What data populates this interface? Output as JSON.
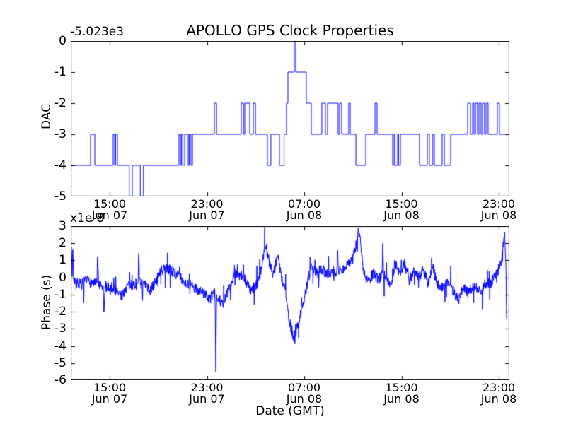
{
  "figure": {
    "title": "APOLLO GPS Clock Properties",
    "xlabel": "Date (GMT)",
    "background_color": "#ffffff",
    "line_color": "#0000ff",
    "axis_color": "#000000"
  },
  "chart_data": [
    {
      "type": "line",
      "style": "step-post",
      "series_name": "DAC",
      "ylabel": "DAC",
      "y_offset_label": "-5.023e3",
      "ylim": [
        -5,
        0
      ],
      "yticks": [
        0,
        -1,
        -2,
        -3,
        -4,
        -5
      ],
      "xlim_hours": [
        11.8,
        47.87
      ],
      "x_unit": "hours since Jun 07 00:00 GMT",
      "xticks": [
        {
          "hour": 15,
          "label": "15:00",
          "sub": "Jun 07"
        },
        {
          "hour": 23,
          "label": "23:00",
          "sub": "Jun 07"
        },
        {
          "hour": 31,
          "label": "07:00",
          "sub": "Jun 08"
        },
        {
          "hour": 39,
          "label": "15:00",
          "sub": "Jun 08"
        },
        {
          "hour": 47,
          "label": "23:00",
          "sub": "Jun 08"
        }
      ],
      "steps": [
        [
          11.8,
          -4
        ],
        [
          13.43,
          -3
        ],
        [
          13.78,
          -4
        ],
        [
          15.29,
          -3
        ],
        [
          15.41,
          -4
        ],
        [
          15.49,
          -3
        ],
        [
          15.64,
          -4
        ],
        [
          16.61,
          -5
        ],
        [
          16.86,
          -4
        ],
        [
          17.52,
          -5
        ],
        [
          17.78,
          -4
        ],
        [
          20.7,
          -3
        ],
        [
          20.82,
          -4
        ],
        [
          20.91,
          -3
        ],
        [
          21.02,
          -4
        ],
        [
          21.17,
          -3
        ],
        [
          21.46,
          -4
        ],
        [
          21.55,
          -3
        ],
        [
          21.69,
          -4
        ],
        [
          21.81,
          -3
        ],
        [
          23.61,
          -2
        ],
        [
          23.79,
          -3
        ],
        [
          25.82,
          -2
        ],
        [
          26.0,
          -3
        ],
        [
          26.11,
          -2
        ],
        [
          26.52,
          -3
        ],
        [
          26.81,
          -2
        ],
        [
          26.99,
          -3
        ],
        [
          27.97,
          -4
        ],
        [
          28.26,
          -3
        ],
        [
          28.96,
          -4
        ],
        [
          29.34,
          -3
        ],
        [
          29.54,
          -2
        ],
        [
          29.66,
          -1
        ],
        [
          30.18,
          0
        ],
        [
          30.3,
          -1
        ],
        [
          31.17,
          -2
        ],
        [
          31.58,
          -3
        ],
        [
          32.45,
          -2
        ],
        [
          32.74,
          -3
        ],
        [
          32.92,
          -2
        ],
        [
          33.79,
          -3
        ],
        [
          33.91,
          -2
        ],
        [
          34.08,
          -3
        ],
        [
          34.66,
          -2
        ],
        [
          34.78,
          -3
        ],
        [
          35.25,
          -4
        ],
        [
          36.06,
          -3
        ],
        [
          36.82,
          -2
        ],
        [
          36.99,
          -3
        ],
        [
          38.27,
          -4
        ],
        [
          38.39,
          -3
        ],
        [
          38.47,
          -4
        ],
        [
          38.68,
          -3
        ],
        [
          38.76,
          -4
        ],
        [
          38.91,
          -3
        ],
        [
          40.48,
          -4
        ],
        [
          41.12,
          -3
        ],
        [
          41.29,
          -4
        ],
        [
          41.58,
          -3
        ],
        [
          41.7,
          -4
        ],
        [
          42.34,
          -3
        ],
        [
          42.52,
          -4
        ],
        [
          43.04,
          -3
        ],
        [
          44.44,
          -2
        ],
        [
          44.67,
          -3
        ],
        [
          44.85,
          -2
        ],
        [
          44.96,
          -3
        ],
        [
          45.08,
          -2
        ],
        [
          45.25,
          -3
        ],
        [
          45.37,
          -2
        ],
        [
          45.54,
          -3
        ],
        [
          45.66,
          -2
        ],
        [
          45.83,
          -3
        ],
        [
          45.95,
          -2
        ],
        [
          46.12,
          -3
        ],
        [
          46.88,
          -2
        ],
        [
          47.05,
          -3
        ],
        [
          47.52,
          -3
        ]
      ]
    },
    {
      "type": "line",
      "style": "noisy",
      "series_name": "Phase",
      "ylabel": "Phase (s)",
      "y_multiplier_label": "x1e-8",
      "ylim": [
        -6,
        3
      ],
      "yticks": [
        3,
        2,
        1,
        0,
        -1,
        -2,
        -3,
        -4,
        -5,
        -6
      ],
      "xlim_hours": [
        11.8,
        47.87
      ],
      "x_unit": "hours since Jun 07 00:00 GMT",
      "xticks": [
        {
          "hour": 15,
          "label": "15:00",
          "sub": "Jun 07"
        },
        {
          "hour": 23,
          "label": "23:00",
          "sub": "Jun 07"
        },
        {
          "hour": 31,
          "label": "07:00",
          "sub": "Jun 08"
        },
        {
          "hour": 39,
          "label": "15:00",
          "sub": "Jun 08"
        },
        {
          "hour": 47,
          "label": "23:00",
          "sub": "Jun 08"
        }
      ],
      "trend_points": [
        [
          11.8,
          1.0
        ],
        [
          11.85,
          1.8
        ],
        [
          11.92,
          0.2
        ],
        [
          11.97,
          1.9
        ],
        [
          12.03,
          0.0
        ],
        [
          12.3,
          -0.3
        ],
        [
          12.67,
          -0.4
        ],
        [
          13.2,
          -0.2
        ],
        [
          13.55,
          -0.3
        ],
        [
          13.95,
          -0.4
        ],
        [
          14.01,
          1.5
        ],
        [
          14.1,
          -0.5
        ],
        [
          14.47,
          -0.6
        ],
        [
          14.53,
          -2.0
        ],
        [
          14.65,
          -0.5
        ],
        [
          15.29,
          -0.6
        ],
        [
          15.99,
          -1.1
        ],
        [
          16.45,
          -0.5
        ],
        [
          17.0,
          -0.4
        ],
        [
          17.33,
          -0.3
        ],
        [
          17.39,
          1.5
        ],
        [
          17.46,
          -0.3
        ],
        [
          18.0,
          -0.5
        ],
        [
          18.32,
          -0.8
        ],
        [
          18.8,
          -0.2
        ],
        [
          19.25,
          0.4
        ],
        [
          19.95,
          0.5
        ],
        [
          20.64,
          0.1
        ],
        [
          21.23,
          -0.3
        ],
        [
          21.98,
          -0.6
        ],
        [
          22.74,
          -0.9
        ],
        [
          23.2,
          -1.3
        ],
        [
          23.55,
          -0.9
        ],
        [
          23.67,
          -1.0
        ],
        [
          23.73,
          -5.5
        ],
        [
          23.8,
          -1.0
        ],
        [
          24.31,
          -1.6
        ],
        [
          24.72,
          -0.8
        ],
        [
          25.3,
          0.3
        ],
        [
          26.05,
          0.0
        ],
        [
          26.64,
          -0.8
        ],
        [
          27.1,
          -0.4
        ],
        [
          27.51,
          0.6
        ],
        [
          27.8,
          2.1
        ],
        [
          28.09,
          1.0
        ],
        [
          28.44,
          0.2
        ],
        [
          28.85,
          1.3
        ],
        [
          29.14,
          -0.1
        ],
        [
          29.43,
          -0.6
        ],
        [
          29.72,
          -2.4
        ],
        [
          30.01,
          -3.2
        ],
        [
          30.24,
          -3.6
        ],
        [
          30.53,
          -2.6
        ],
        [
          30.88,
          -1.6
        ],
        [
          31.23,
          -0.4
        ],
        [
          31.58,
          0.6
        ],
        [
          31.99,
          0.3
        ],
        [
          32.45,
          0.5
        ],
        [
          32.86,
          0.2
        ],
        [
          33.33,
          0.4
        ],
        [
          33.67,
          0.3
        ],
        [
          33.73,
          1.7
        ],
        [
          33.8,
          0.4
        ],
        [
          34.49,
          0.6
        ],
        [
          34.9,
          1.1
        ],
        [
          35.19,
          1.5
        ],
        [
          35.42,
          2.7
        ],
        [
          35.6,
          2.2
        ],
        [
          35.89,
          0.3
        ],
        [
          36.24,
          -0.3
        ],
        [
          36.65,
          0.2
        ],
        [
          37.11,
          -0.1
        ],
        [
          37.4,
          0.2
        ],
        [
          37.46,
          1.9
        ],
        [
          37.53,
          0.2
        ],
        [
          38.16,
          -0.4
        ],
        [
          38.45,
          0.8
        ],
        [
          38.85,
          0.3
        ],
        [
          39.26,
          0.8
        ],
        [
          39.61,
          -0.2
        ],
        [
          40.02,
          0.4
        ],
        [
          40.43,
          0.0
        ],
        [
          40.78,
          0.5
        ],
        [
          41.18,
          -0.3
        ],
        [
          41.58,
          0.6
        ],
        [
          41.93,
          -0.4
        ],
        [
          42.4,
          -0.6
        ],
        [
          42.86,
          -0.3
        ],
        [
          43.27,
          -0.8
        ],
        [
          43.68,
          -1.3
        ],
        [
          44.09,
          -0.6
        ],
        [
          44.5,
          -0.9
        ],
        [
          44.96,
          -0.5
        ],
        [
          45.43,
          -0.8
        ],
        [
          45.89,
          -0.4
        ],
        [
          46.36,
          -0.3
        ],
        [
          46.71,
          0.1
        ],
        [
          47.06,
          0.6
        ],
        [
          47.29,
          1.3
        ],
        [
          47.47,
          2.6
        ],
        [
          47.58,
          0.8
        ],
        [
          47.64,
          -2.5
        ]
      ],
      "noise": {
        "amplitude": 0.32,
        "spike_probability": 0.06,
        "spike_amplitude": 1.05,
        "n_points": 1500,
        "seed": 7
      }
    }
  ]
}
